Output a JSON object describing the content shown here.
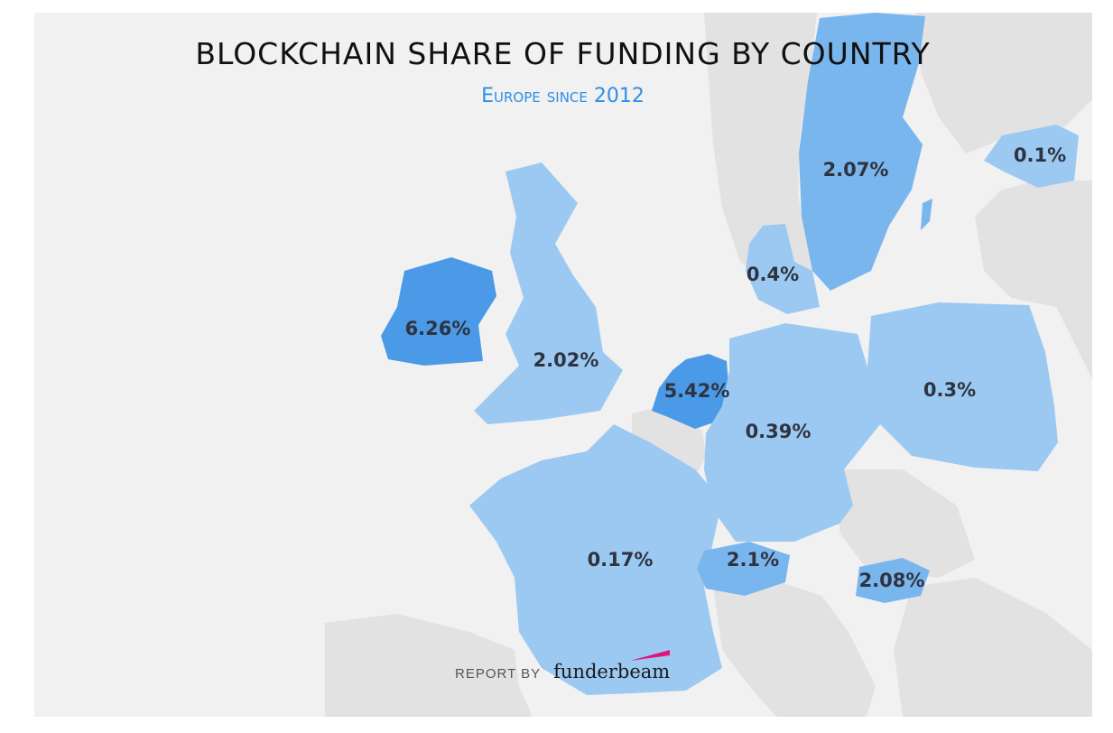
{
  "header": {
    "title": "BLOCKCHAIN SHARE OF FUNDING BY COUNTRY",
    "subtitle": "Europe since 2012"
  },
  "colors": {
    "background": "#f1f1f1",
    "land_other": "#e2e2e2",
    "share_low": "#9cc9f2",
    "share_mid": "#7ab6ee",
    "share_high": "#4a9ae8",
    "subtitle": "#2d8fe6",
    "brand_accent": "#e0157a"
  },
  "countries": [
    {
      "name": "sweden",
      "value": "2.07%"
    },
    {
      "name": "estonia",
      "value": "0.1%"
    },
    {
      "name": "denmark",
      "value": "0.4%"
    },
    {
      "name": "ireland",
      "value": "6.26%"
    },
    {
      "name": "uk",
      "value": "2.02%"
    },
    {
      "name": "netherlands",
      "value": "5.42%"
    },
    {
      "name": "germany",
      "value": "0.39%"
    },
    {
      "name": "poland",
      "value": "0.3%"
    },
    {
      "name": "france",
      "value": "0.17%"
    },
    {
      "name": "switzerland",
      "value": "2.1%"
    },
    {
      "name": "slovenia",
      "value": "2.08%"
    }
  ],
  "credit": {
    "label": "REPORT BY",
    "brand": "funderbeam"
  }
}
